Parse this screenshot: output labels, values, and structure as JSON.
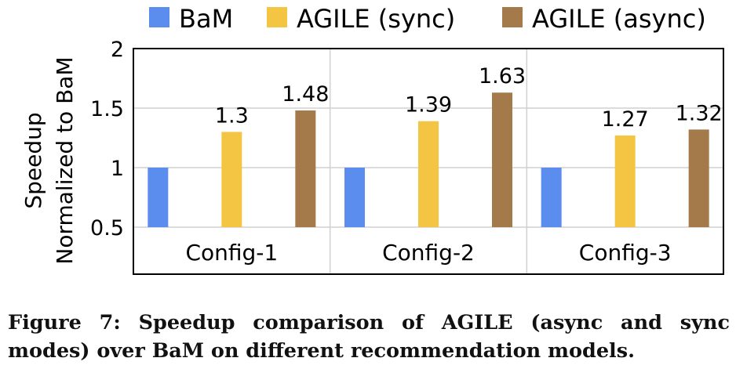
{
  "chart_data": {
    "type": "bar",
    "categories": [
      "Config-1",
      "Config-2",
      "Config-3"
    ],
    "series": [
      {
        "name": "BaM",
        "values": [
          1,
          1,
          1
        ],
        "color": "#5B8DEF",
        "labels": [
          "",
          "",
          ""
        ]
      },
      {
        "name": "AGILE (sync)",
        "values": [
          1.3,
          1.39,
          1.27
        ],
        "color": "#F4C542",
        "labels": [
          "1.3",
          "1.39",
          "1.27"
        ]
      },
      {
        "name": "AGILE (async)",
        "values": [
          1.48,
          1.63,
          1.32
        ],
        "color": "#A47A4B",
        "labels": [
          "1.48",
          "1.63",
          "1.32"
        ]
      }
    ],
    "ylabel": [
      "Speedup",
      "Normalized to BaM"
    ],
    "ylim": [
      0.5,
      2
    ],
    "yticks": [
      "0.5",
      "1",
      "1.5",
      "2"
    ],
    "ytick_values": [
      0.5,
      1,
      1.5,
      2
    ],
    "legend_position": "top",
    "grid": true
  },
  "caption": "Figure 7: Speedup comparison of AGILE (async and sync modes) over BaM on different recommendation models."
}
